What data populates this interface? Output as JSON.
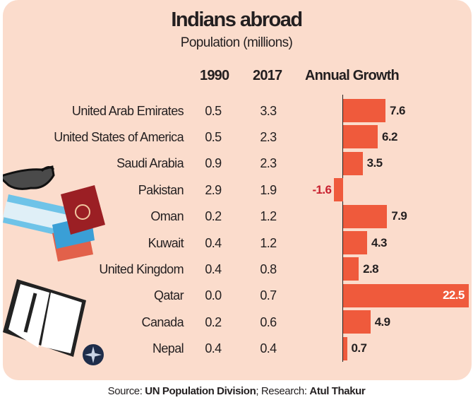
{
  "chart_data": {
    "type": "table",
    "title": "Indians abroad",
    "subtitle": "Population (millions)",
    "columns": [
      "1990",
      "2017",
      "Annual Growth"
    ],
    "categories": [
      "United Arab Emirates",
      "United States of America",
      "Saudi Arabia",
      "Pakistan",
      "Oman",
      "Kuwait",
      "United Kingdom",
      "Qatar",
      "Canada",
      "Nepal"
    ],
    "series": [
      {
        "name": "1990",
        "values": [
          "0.5",
          "0.5",
          "0.9",
          "2.9",
          "0.2",
          "0.4",
          "0.4",
          "0.0",
          "0.2",
          "0.4"
        ]
      },
      {
        "name": "2017",
        "values": [
          "3.3",
          "2.3",
          "2.3",
          "1.9",
          "1.2",
          "1.2",
          "0.8",
          "0.7",
          "0.6",
          "0.4"
        ]
      },
      {
        "name": "Annual Growth",
        "values": [
          7.6,
          6.2,
          3.5,
          -1.6,
          7.9,
          4.3,
          2.8,
          22.5,
          4.9,
          0.7
        ],
        "labels": [
          "7.6",
          "6.2",
          "3.5",
          "-1.6",
          "7.9",
          "4.3",
          "2.8",
          "22.5",
          "4.9",
          "0.7"
        ],
        "chart": "bar"
      }
    ],
    "colors": {
      "bar": "#ef5a3c",
      "negative_label": "#c8202f",
      "background": "#fbdccc"
    }
  },
  "source": {
    "prefix": "Source: ",
    "org": "UN Population Division",
    "mid": "; Research: ",
    "author": "Atul Thakur"
  }
}
